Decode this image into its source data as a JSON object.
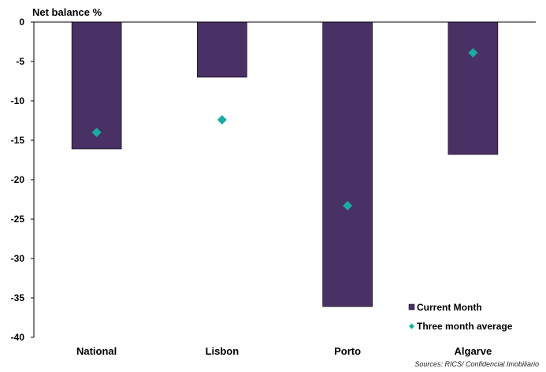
{
  "chart_data": {
    "type": "bar",
    "ylabel": "Net balance %",
    "categories": [
      "National",
      "Lisbon",
      "Porto",
      "Algarve"
    ],
    "series": [
      {
        "name": "Current Month",
        "kind": "bar",
        "color": "#4a3165",
        "values": [
          -16.1,
          -7.0,
          -36.1,
          -16.8
        ]
      },
      {
        "name": "Three month average",
        "kind": "marker",
        "color": "#1aaba3",
        "values": [
          -14.0,
          -12.4,
          -23.3,
          -3.9
        ]
      }
    ],
    "ylim": [
      -40,
      0
    ],
    "yticks": [
      0,
      -5,
      -10,
      -15,
      -20,
      -25,
      -30,
      -35,
      -40
    ],
    "grid": false,
    "legend_position": "bottom-right",
    "source": "Sources: RICS/ Confidencial Imobiliario"
  }
}
